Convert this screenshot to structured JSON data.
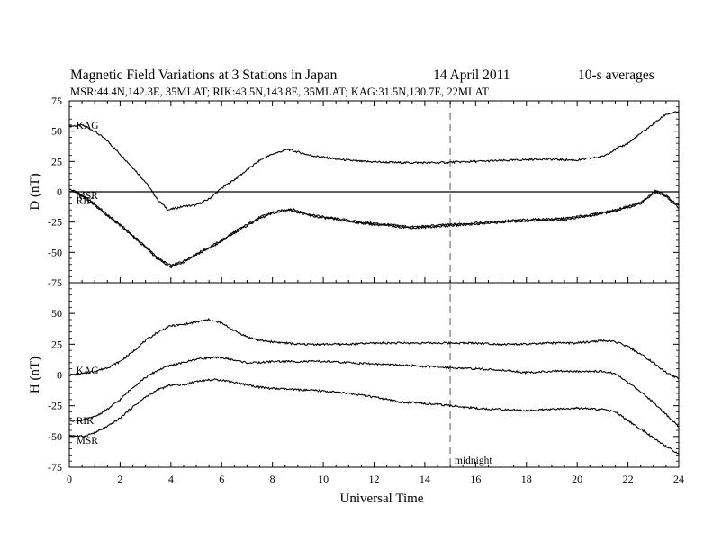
{
  "figure": {
    "title_left": "Magnetic Field Variations at 3 Stations in Japan",
    "title_date": "14  April     2011",
    "title_avg": "10-s averages",
    "subtitle": "MSR:44.4N,142.3E, 35MLAT;  RIK:43.5N,143.8E, 35MLAT;  KAG:31.5N,130.7E, 22MLAT",
    "x_axis_label": "Universal Time",
    "midnight_label": "midnight"
  },
  "colors": {
    "trace": "#000000",
    "midnight_line": "#a0a0a0",
    "zero_line": "#000000"
  },
  "chart_data": [
    {
      "type": "line",
      "ylabel": "D (nT)",
      "xlim": [
        0,
        24
      ],
      "ylim": [
        -75,
        75
      ],
      "yticks": [
        75,
        50,
        25,
        0,
        -25,
        -50,
        -75
      ],
      "zero_line": true,
      "midnight_x": 15,
      "series": [
        {
          "name": "KAG",
          "label_at": [
            0.2,
            55
          ],
          "x": [
            0,
            0.5,
            1,
            1.5,
            2,
            2.5,
            3,
            3.5,
            3.9,
            4.5,
            5,
            5.5,
            6,
            6.5,
            7,
            7.5,
            8,
            8.6,
            9.5,
            10.5,
            11.5,
            13,
            14.5,
            16,
            17.5,
            18.5,
            20,
            21,
            21.5,
            22,
            22.5,
            23,
            23.5,
            24
          ],
          "y": [
            54,
            55,
            50,
            42,
            31,
            20,
            8,
            -7,
            -15,
            -12,
            -11,
            -6,
            3,
            10,
            18,
            26,
            31,
            35,
            30,
            27,
            25,
            24,
            24,
            25,
            26,
            27,
            26,
            29,
            35,
            40,
            48,
            56,
            64,
            66
          ]
        },
        {
          "name": "MSR",
          "label_at": [
            0.2,
            -3
          ],
          "x": [
            0,
            0.3,
            0.5,
            1,
            1.5,
            2,
            2.5,
            3,
            3.5,
            4,
            4.5,
            5,
            5.5,
            6,
            6.5,
            7,
            7.5,
            8,
            8.7,
            9.5,
            10.5,
            11.5,
            12.5,
            13.5,
            15,
            16.5,
            18,
            19.5,
            20.5,
            21.5,
            22.5,
            23.1,
            23.5,
            24
          ],
          "y": [
            2,
            0,
            -3,
            -10,
            -19,
            -27,
            -36,
            -45,
            -55,
            -61,
            -57,
            -51,
            -46,
            -40,
            -33,
            -27,
            -21,
            -17,
            -14,
            -19,
            -22,
            -25,
            -27,
            -29,
            -27,
            -25,
            -23,
            -22,
            -19,
            -15,
            -9,
            1,
            -3,
            -12
          ]
        },
        {
          "name": "RIK",
          "label_at": [
            0.2,
            -7
          ],
          "x": [
            0,
            0.3,
            0.5,
            1,
            1.5,
            2,
            2.5,
            3,
            3.5,
            4,
            4.5,
            5,
            5.5,
            6,
            6.5,
            7,
            7.5,
            8,
            8.7,
            9.5,
            10.5,
            11.5,
            12.5,
            13.5,
            15,
            16.5,
            18,
            19.5,
            20.5,
            21.5,
            22.5,
            23.1,
            23.5,
            24
          ],
          "y": [
            1,
            -1,
            -4,
            -11,
            -20,
            -28,
            -37,
            -46,
            -56,
            -62,
            -58,
            -52,
            -47,
            -41,
            -34,
            -28,
            -22,
            -18,
            -15,
            -20,
            -23,
            -26,
            -28,
            -30,
            -28,
            -26,
            -24,
            -23,
            -20,
            -16,
            -10,
            0,
            -4,
            -13
          ]
        }
      ]
    },
    {
      "type": "line",
      "ylabel": "H (nT)",
      "xlim": [
        0,
        24
      ],
      "ylim": [
        -75,
        75
      ],
      "yticks": [
        50,
        25,
        0,
        -25,
        -50,
        -75
      ],
      "zero_line": false,
      "midnight_x": 15,
      "series": [
        {
          "name": "KAG",
          "label_at": [
            0.2,
            4
          ],
          "x": [
            0,
            0.5,
            1,
            1.5,
            2,
            2.5,
            3,
            3.5,
            4,
            4.5,
            5,
            5.5,
            6,
            6.5,
            7,
            7.5,
            8,
            9,
            10,
            11,
            12,
            13,
            14,
            15,
            16,
            17,
            18,
            19,
            20,
            21,
            21.5,
            22,
            22.5,
            23,
            23.5,
            24
          ],
          "y": [
            0,
            1,
            3,
            6,
            11,
            19,
            28,
            35,
            40,
            41,
            43,
            45,
            42,
            36,
            31,
            28,
            27,
            25,
            25,
            25,
            26,
            26,
            26,
            26,
            26,
            25,
            25,
            26,
            26,
            28,
            27,
            23,
            17,
            10,
            2,
            -3
          ]
        },
        {
          "name": "RIK",
          "label_at": [
            0.2,
            -37
          ],
          "x": [
            0,
            0.5,
            1,
            1.5,
            2,
            2.5,
            3,
            3.5,
            4,
            4.5,
            5,
            5.5,
            6,
            6.5,
            7,
            7.5,
            8,
            9,
            10,
            11,
            12,
            13,
            14,
            15,
            16,
            17,
            18,
            19,
            20,
            21,
            21.5,
            22,
            22.5,
            23,
            23.5,
            24
          ],
          "y": [
            -37,
            -37,
            -34,
            -28,
            -20,
            -10,
            -2,
            4,
            8,
            10,
            13,
            14,
            14,
            12,
            10,
            10,
            11,
            11,
            11,
            10,
            9,
            8,
            7,
            6,
            5,
            4,
            2,
            3,
            3,
            3,
            1,
            -6,
            -14,
            -22,
            -32,
            -42
          ]
        },
        {
          "name": "MSR",
          "label_at": [
            0.2,
            -53
          ],
          "x": [
            0,
            0.5,
            1,
            1.5,
            2,
            2.5,
            3,
            3.5,
            4,
            4.5,
            5,
            5.5,
            6,
            6.5,
            7,
            7.5,
            8,
            9,
            10,
            11,
            12,
            13,
            14,
            15,
            16,
            17,
            18,
            19,
            20,
            21,
            21.5,
            22,
            22.5,
            23,
            23.5,
            24
          ],
          "y": [
            -49,
            -50,
            -47,
            -42,
            -35,
            -26,
            -18,
            -12,
            -8,
            -8,
            -5,
            -4,
            -4,
            -6,
            -8,
            -10,
            -11,
            -12,
            -13,
            -15,
            -18,
            -22,
            -23,
            -25,
            -27,
            -28,
            -29,
            -28,
            -27,
            -28,
            -30,
            -37,
            -44,
            -51,
            -58,
            -64
          ]
        }
      ]
    }
  ]
}
